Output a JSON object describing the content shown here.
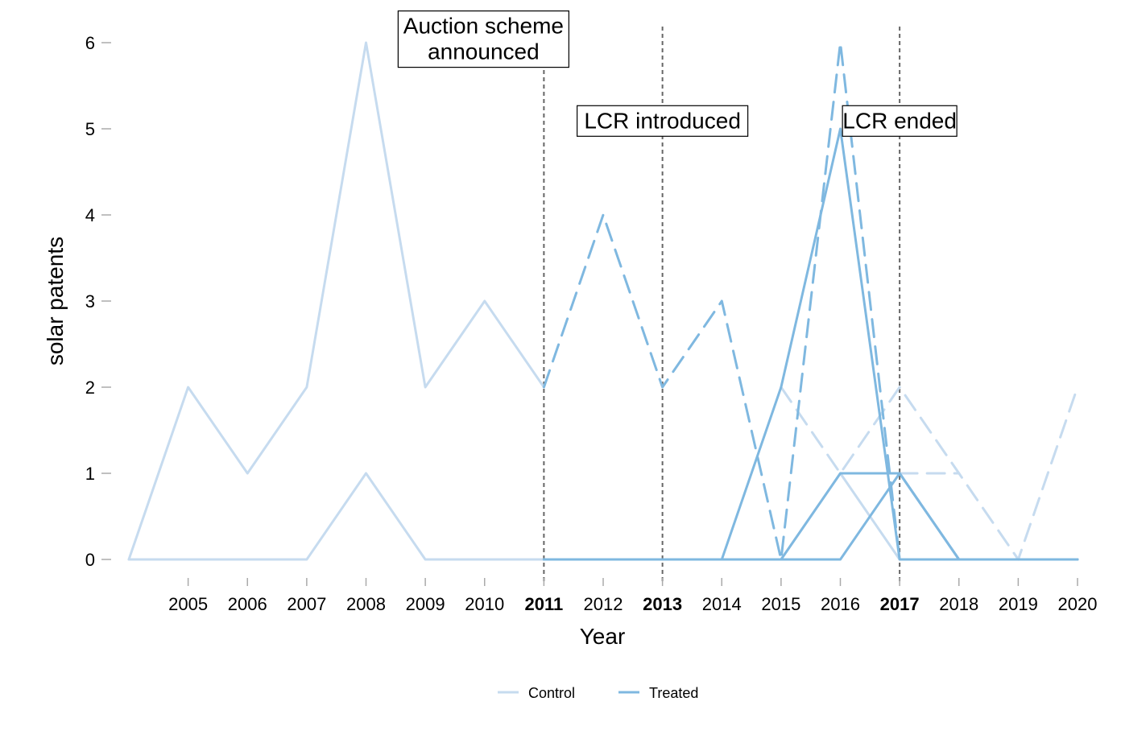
{
  "chart_data": {
    "type": "line",
    "title": "",
    "xlabel": "Year",
    "ylabel": "solar patents",
    "xlim": [
      2004,
      2020
    ],
    "ylim": [
      0,
      6
    ],
    "x_ticks": [
      {
        "year": 2005,
        "label": "2005",
        "bold": false
      },
      {
        "year": 2006,
        "label": "2006",
        "bold": false
      },
      {
        "year": 2007,
        "label": "2007",
        "bold": false
      },
      {
        "year": 2008,
        "label": "2008",
        "bold": false
      },
      {
        "year": 2009,
        "label": "2009",
        "bold": false
      },
      {
        "year": 2010,
        "label": "2010",
        "bold": false
      },
      {
        "year": 2011,
        "label": "2011",
        "bold": true
      },
      {
        "year": 2012,
        "label": "2012",
        "bold": false
      },
      {
        "year": 2013,
        "label": "2013",
        "bold": true
      },
      {
        "year": 2014,
        "label": "2014",
        "bold": false
      },
      {
        "year": 2015,
        "label": "2015",
        "bold": false
      },
      {
        "year": 2016,
        "label": "2016",
        "bold": false
      },
      {
        "year": 2017,
        "label": "2017",
        "bold": true
      },
      {
        "year": 2018,
        "label": "2018",
        "bold": false
      },
      {
        "year": 2019,
        "label": "2019",
        "bold": false
      },
      {
        "year": 2020,
        "label": "2020",
        "bold": false
      }
    ],
    "y_ticks": [
      {
        "value": 0,
        "label": "0"
      },
      {
        "value": 1,
        "label": "1"
      },
      {
        "value": 2,
        "label": "2"
      },
      {
        "value": 3,
        "label": "3"
      },
      {
        "value": 4,
        "label": "4"
      },
      {
        "value": 5,
        "label": "5"
      },
      {
        "value": 6,
        "label": "6"
      }
    ],
    "event_lines": [
      {
        "year": 2011,
        "label": [
          "Auction scheme",
          "announced"
        ],
        "label_y": 6.2
      },
      {
        "year": 2013,
        "label": [
          "LCR introduced"
        ],
        "label_y": 5.1
      },
      {
        "year": 2017,
        "label": [
          "LCR ended"
        ],
        "label_y": 5.1
      }
    ],
    "colors": {
      "control": "#c6dbef",
      "treated": "#7fb8e0",
      "event_line": "#666666"
    },
    "series": [
      {
        "group": "control",
        "dashed": false,
        "x": [
          2004,
          2005,
          2006,
          2007,
          2008,
          2009,
          2010,
          2011
        ],
        "y": [
          0,
          2,
          1,
          2,
          6,
          2,
          3,
          2
        ]
      },
      {
        "group": "control",
        "dashed": false,
        "x": [
          2004,
          2005,
          2006,
          2007,
          2008,
          2009,
          2010,
          2011
        ],
        "y": [
          0,
          0,
          0,
          0,
          1,
          0,
          0,
          0
        ]
      },
      {
        "group": "control",
        "dashed": false,
        "x": [
          2011,
          2012,
          2013,
          2014,
          2015,
          2016,
          2017,
          2018,
          2019,
          2020
        ],
        "y": [
          0,
          0,
          0,
          0,
          0,
          1,
          0,
          0,
          0,
          0
        ]
      },
      {
        "group": "control",
        "dashed": true,
        "x": [
          2015,
          2016,
          2017,
          2018,
          2019,
          2020
        ],
        "y": [
          2,
          1,
          2,
          1,
          0,
          2
        ]
      },
      {
        "group": "control",
        "dashed": true,
        "x": [
          2017,
          2018
        ],
        "y": [
          1,
          1
        ]
      },
      {
        "group": "treated",
        "dashed": true,
        "x": [
          2011,
          2012,
          2013,
          2014,
          2015,
          2016,
          2017,
          2018,
          2019,
          2020
        ],
        "y": [
          2,
          4,
          2,
          3,
          0,
          6,
          0,
          0,
          0,
          0
        ]
      },
      {
        "group": "treated",
        "dashed": false,
        "x": [
          2011,
          2012,
          2013,
          2014,
          2015,
          2016,
          2017,
          2018,
          2019,
          2020
        ],
        "y": [
          0,
          0,
          0,
          0,
          2,
          5,
          0,
          0,
          0,
          0
        ]
      },
      {
        "group": "treated",
        "dashed": false,
        "x": [
          2011,
          2012,
          2013,
          2014,
          2015,
          2016,
          2017,
          2018,
          2019,
          2020
        ],
        "y": [
          0,
          0,
          0,
          0,
          0,
          1,
          1,
          0,
          0,
          0
        ]
      },
      {
        "group": "treated",
        "dashed": false,
        "x": [
          2011,
          2012,
          2013,
          2014,
          2015,
          2016,
          2017,
          2018,
          2019,
          2020
        ],
        "y": [
          0,
          0,
          0,
          0,
          0,
          0,
          1,
          0,
          0,
          0
        ]
      }
    ],
    "legend": {
      "placement": "bottom-center",
      "items": [
        {
          "label": "Control",
          "group": "control"
        },
        {
          "label": "Treated",
          "group": "treated"
        }
      ]
    }
  }
}
